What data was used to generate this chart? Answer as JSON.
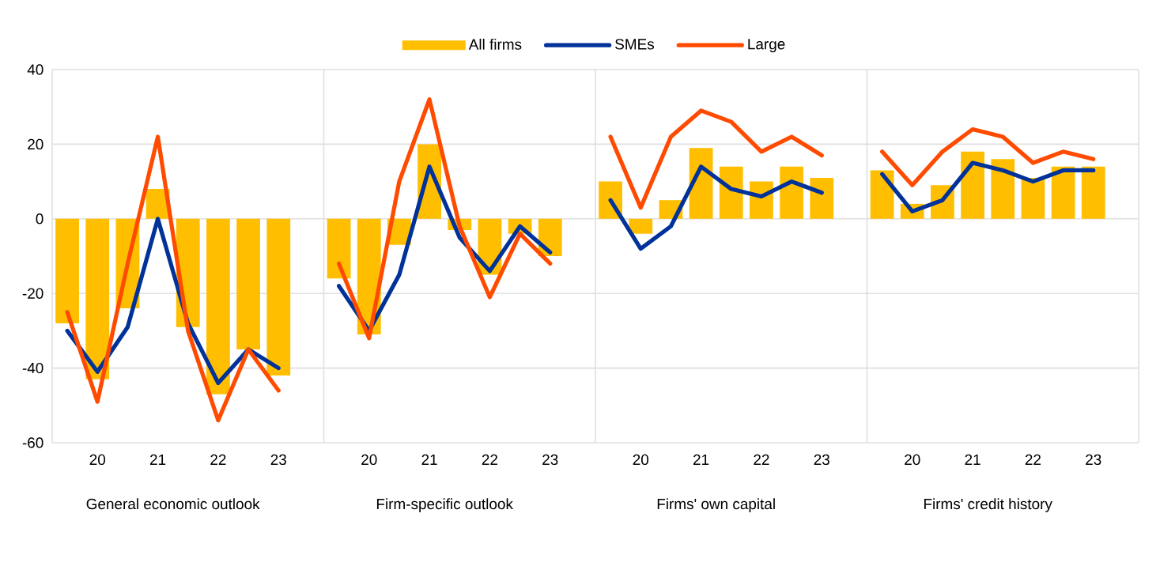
{
  "chart_data": {
    "type": "bar",
    "categories": [
      null,
      "20",
      null,
      "21",
      null,
      "22",
      null,
      "23",
      null,
      null,
      "20",
      null,
      "21",
      null,
      "22",
      null,
      "23",
      null,
      null,
      "20",
      null,
      "21",
      null,
      "22",
      null,
      "23",
      null,
      null,
      "20",
      null,
      "21",
      null,
      "22",
      null,
      "23",
      null
    ],
    "series": [
      {
        "name": "All firms",
        "color": "#ffbf00",
        "values": [
          -28,
          -43,
          -24,
          8,
          -29,
          -47,
          -35,
          -42,
          null,
          -16,
          -31,
          -7,
          20,
          -3,
          -15,
          -4,
          -10,
          null,
          10,
          -4,
          5,
          19,
          14,
          10,
          14,
          11,
          null,
          13,
          4,
          9,
          18,
          16,
          11,
          14,
          14,
          null
        ]
      },
      {
        "name": "SMEs",
        "type": "line",
        "color": "#003299",
        "values": [
          -30,
          -41,
          -29,
          0,
          -28,
          -44,
          -35,
          -40,
          null,
          -18,
          -30,
          -15,
          14,
          -5,
          -14,
          -2,
          -9,
          null,
          5,
          -8,
          -2,
          14,
          8,
          6,
          10,
          7,
          null,
          12,
          2,
          5,
          15,
          13,
          10,
          13,
          13,
          null
        ]
      },
      {
        "name": "Large",
        "type": "line",
        "color": "#ff4b00",
        "values": [
          -25,
          -49,
          -12,
          22,
          -30,
          -54,
          -35,
          -46,
          null,
          -12,
          -32,
          10,
          32,
          -2,
          -21,
          -4,
          -12,
          null,
          22,
          3,
          22,
          29,
          26,
          18,
          22,
          17,
          null,
          18,
          9,
          18,
          24,
          22,
          15,
          18,
          16,
          null
        ]
      }
    ],
    "ylim": [
      -60,
      40
    ],
    "yticks": [
      -60,
      -40,
      -20,
      0,
      20,
      40
    ],
    "grid": "y",
    "legend": "top",
    "marker": "none",
    "line_style": "solid",
    "annotations": [
      "General economic outlook",
      "Firm-specific outlook",
      "Firms' own capital",
      "Firms' credit history"
    ]
  }
}
